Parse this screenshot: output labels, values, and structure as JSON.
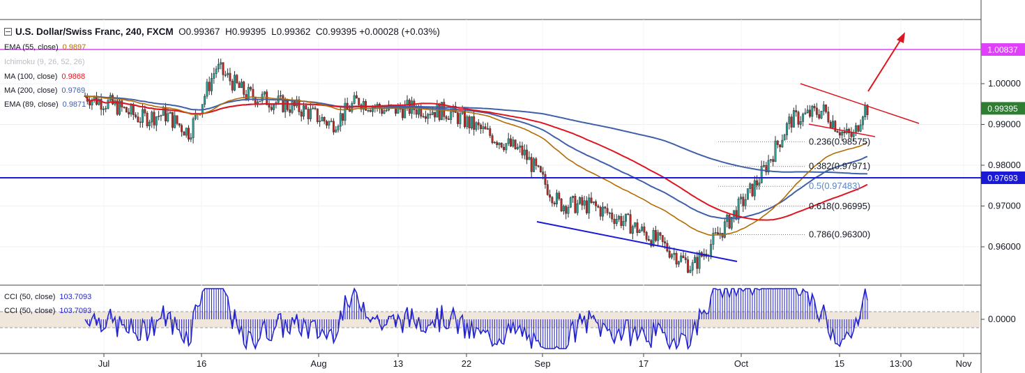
{
  "header": {
    "title": "U.S. Dollar/Swiss Franc, 240, FXCM",
    "open_label": "O",
    "open": "0.99367",
    "high_label": "H",
    "high": "0.99395",
    "low_label": "L",
    "low": "0.99362",
    "close_label": "C",
    "close": "0.99395",
    "change": "+0.00028 (+0.03%)"
  },
  "indicators": [
    {
      "label": "EMA (55, close)",
      "value": "0.9897",
      "color": "#b36b00"
    },
    {
      "label": "Ichimoku (9, 26, 52, 26)",
      "value": "",
      "color": "#c0c4cc"
    },
    {
      "label": "MA (100, close)",
      "value": "0.9868",
      "color": "#e0141e"
    },
    {
      "label": "MA (200, close)",
      "value": "0.9769",
      "color": "#3f5fa8"
    },
    {
      "label": "EMA (89, close)",
      "value": "0.9871",
      "color": "#3f5fa8"
    }
  ],
  "cci_legend": [
    {
      "label": "CCI (50, close)",
      "value": "103.7093"
    },
    {
      "label": "CCI (50, close)",
      "value": "103.7093"
    }
  ],
  "badges": {
    "target": "1.00837",
    "last": "0.99395",
    "support": "0.97693"
  },
  "colors": {
    "up": "#26a69a",
    "down": "#c2261f",
    "ema55": "#b36b00",
    "ma100": "#e0141e",
    "ma200": "#3f5fa8",
    "ema89": "#3f5fa8",
    "support": "#1a1ad6",
    "target": "#e040fb",
    "last": "#2e7d32",
    "cci": "#2222cc"
  },
  "chart_data": {
    "type": "candlestick",
    "title": "U.S. Dollar/Swiss Franc, 240, FXCM",
    "y_ticks": [
      "1.00000",
      "0.99000",
      "0.98000",
      "0.97000",
      "0.96000"
    ],
    "ylim": [
      0.9535,
      1.0095
    ],
    "x_ticks": [
      "Jul",
      "16",
      "Aug",
      "13",
      "22",
      "Sep",
      "17",
      "Oct",
      "15",
      "13:00",
      "Nov"
    ],
    "x_values": [
      "Jul",
      "16",
      "Aug",
      "13",
      "22",
      "Sep",
      "17",
      "Oct",
      "15",
      "13:00",
      "Nov"
    ],
    "price_path": [
      [
        "Jul",
        0.9945
      ],
      [
        "Jul",
        0.9915
      ],
      [
        "Jul",
        0.9925
      ],
      [
        "Jul",
        0.988
      ],
      [
        "16",
        1.004
      ],
      [
        "16",
        0.9975
      ],
      [
        "16",
        0.9955
      ],
      [
        "16",
        0.9935
      ],
      [
        "Aug",
        0.99
      ],
      [
        "Aug",
        0.996
      ],
      [
        "Aug",
        0.9935
      ],
      [
        "13",
        0.994
      ],
      [
        "13",
        0.993
      ],
      [
        "22",
        0.988
      ],
      [
        "22",
        0.983
      ],
      [
        "Sep",
        0.9705
      ],
      [
        "Sep",
        0.97
      ],
      [
        "Sep",
        0.966
      ],
      [
        "17",
        0.961
      ],
      [
        "17",
        0.955
      ],
      [
        "17",
        0.965
      ],
      [
        "Oct",
        0.976
      ],
      [
        "Oct",
        0.991
      ],
      [
        "Oct",
        0.9935
      ],
      [
        "15",
        0.9875
      ],
      [
        "15",
        0.987
      ],
      [
        "15",
        0.994
      ]
    ],
    "horizontal_levels": [
      {
        "value": 1.00837,
        "label": "1.00837"
      },
      {
        "value": 0.97693,
        "label": "0.97693"
      }
    ],
    "fibonacci": [
      {
        "ratio": "0.236",
        "value": 0.98575,
        "label": "0.236(0.98575)"
      },
      {
        "ratio": "0.382",
        "value": 0.97971,
        "label": "0.382(0.97971)"
      },
      {
        "ratio": "0.5",
        "value": 0.97483,
        "label": "0.5(0.97483)"
      },
      {
        "ratio": "0.618",
        "value": 0.96995,
        "label": "0.618(0.96995)"
      },
      {
        "ratio": "0.786",
        "value": 0.963,
        "label": "0.786(0.96300)"
      }
    ],
    "cci": {
      "ticks": [
        "0.0000"
      ],
      "last": 103.7093
    }
  }
}
